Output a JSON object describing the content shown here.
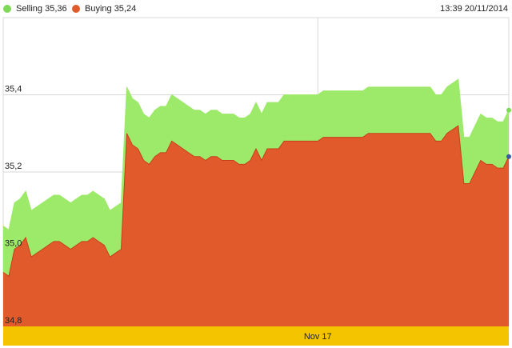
{
  "legend": {
    "selling_label": "Selling 35,36",
    "buying_label": "Buying 35,24"
  },
  "timestamp": "13:39 20/11/2014",
  "colors": {
    "selling": "#9de96a",
    "selling_dot": "#7ed957",
    "buying": "#e05a2b",
    "buying_line": "#c8401a",
    "axis_band": "#f5c400",
    "grid": "#d8d8d8"
  },
  "chart_data": {
    "type": "area",
    "ylim": [
      34.8,
      35.6
    ],
    "yticks": [
      {
        "value": 34.8,
        "label": "34,8"
      },
      {
        "value": 35.0,
        "label": "35,0"
      },
      {
        "value": 35.2,
        "label": "35,2"
      },
      {
        "value": 35.4,
        "label": "35,4"
      }
    ],
    "xticks": [
      {
        "index": 56,
        "label": "Nov 17"
      }
    ],
    "grid": true,
    "legend_position": "top-left",
    "series": [
      {
        "name": "Selling",
        "values": [
          35.06,
          35.05,
          35.12,
          35.13,
          35.15,
          35.1,
          35.11,
          35.12,
          35.13,
          35.14,
          35.14,
          35.13,
          35.12,
          35.13,
          35.14,
          35.14,
          35.15,
          35.14,
          35.13,
          35.1,
          35.11,
          35.12,
          35.42,
          35.39,
          35.38,
          35.35,
          35.34,
          35.36,
          35.37,
          35.37,
          35.4,
          35.39,
          35.38,
          35.37,
          35.36,
          35.36,
          35.35,
          35.36,
          35.36,
          35.35,
          35.35,
          35.35,
          35.34,
          35.34,
          35.35,
          35.38,
          35.35,
          35.38,
          35.38,
          35.38,
          35.4,
          35.4,
          35.4,
          35.4,
          35.4,
          35.4,
          35.4,
          35.41,
          35.41,
          35.41,
          35.41,
          35.41,
          35.41,
          35.41,
          35.41,
          35.42,
          35.42,
          35.42,
          35.42,
          35.42,
          35.42,
          35.42,
          35.42,
          35.42,
          35.42,
          35.42,
          35.42,
          35.4,
          35.4,
          35.42,
          35.43,
          35.44,
          35.29,
          35.29,
          35.32,
          35.35,
          35.34,
          35.34,
          35.33,
          35.33,
          35.36
        ]
      },
      {
        "name": "Buying",
        "values": [
          34.94,
          34.93,
          35.0,
          35.01,
          35.03,
          34.98,
          34.99,
          35.0,
          35.01,
          35.02,
          35.02,
          35.01,
          35.0,
          35.01,
          35.02,
          35.02,
          35.03,
          35.02,
          35.01,
          34.98,
          34.99,
          35.0,
          35.3,
          35.27,
          35.26,
          35.23,
          35.22,
          35.24,
          35.25,
          35.25,
          35.28,
          35.27,
          35.26,
          35.25,
          35.24,
          35.24,
          35.23,
          35.24,
          35.24,
          35.23,
          35.23,
          35.23,
          35.22,
          35.22,
          35.23,
          35.26,
          35.23,
          35.26,
          35.26,
          35.26,
          35.28,
          35.28,
          35.28,
          35.28,
          35.28,
          35.28,
          35.28,
          35.29,
          35.29,
          35.29,
          35.29,
          35.29,
          35.29,
          35.29,
          35.29,
          35.3,
          35.3,
          35.3,
          35.3,
          35.3,
          35.3,
          35.3,
          35.3,
          35.3,
          35.3,
          35.3,
          35.3,
          35.28,
          35.28,
          35.3,
          35.31,
          35.32,
          35.17,
          35.17,
          35.2,
          35.23,
          35.22,
          35.22,
          35.21,
          35.21,
          35.24
        ]
      }
    ]
  }
}
